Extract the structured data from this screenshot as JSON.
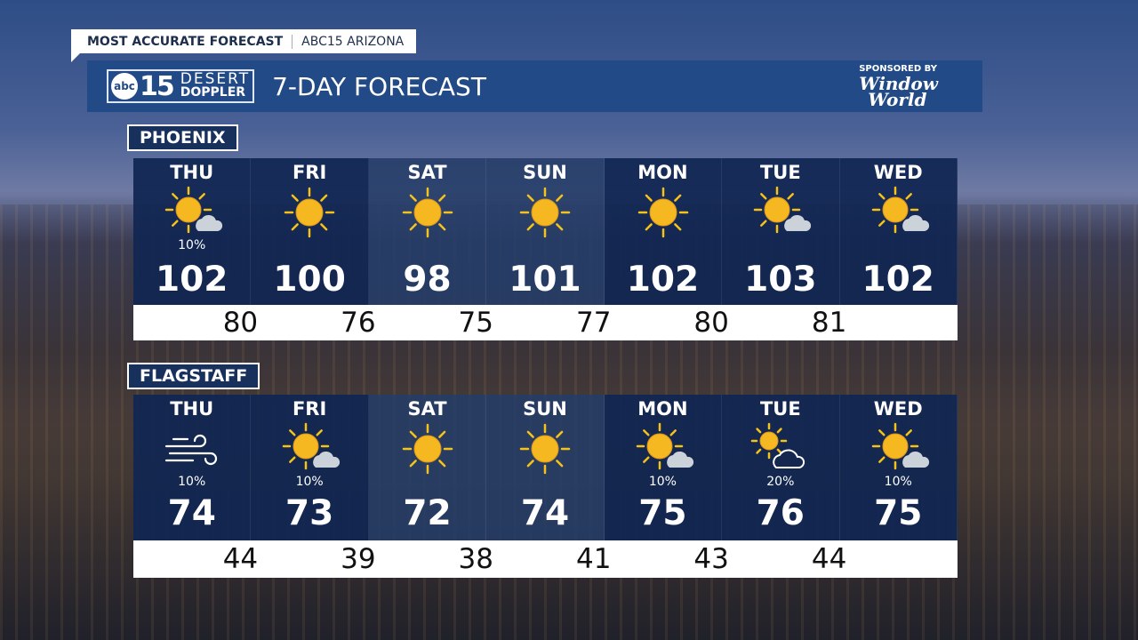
{
  "topbar": {
    "left": "MOST ACCURATE FORECAST",
    "right": "ABC15 ARIZONA"
  },
  "header": {
    "logo_abc": "abc",
    "logo_15": "15",
    "logo_line1": "DESERT",
    "logo_line2": "DOPPLER",
    "title": "7-DAY FORECAST",
    "sponsor_label": "SPONSORED BY",
    "sponsor_name_1": "Window",
    "sponsor_name_2": "World"
  },
  "colors": {
    "panel": "#102652",
    "header": "#224a86",
    "sun": "#f5b820"
  },
  "cities": [
    {
      "name": "PHOENIX",
      "days": [
        {
          "day": "THU",
          "icon": "sun-cloud",
          "precip": "10%",
          "high": "102"
        },
        {
          "day": "FRI",
          "icon": "sun",
          "precip": "",
          "high": "100"
        },
        {
          "day": "SAT",
          "icon": "sun",
          "precip": "",
          "high": "98"
        },
        {
          "day": "SUN",
          "icon": "sun",
          "precip": "",
          "high": "101"
        },
        {
          "day": "MON",
          "icon": "sun",
          "precip": "",
          "high": "102"
        },
        {
          "day": "TUE",
          "icon": "sun-cloud",
          "precip": "",
          "high": "103"
        },
        {
          "day": "WED",
          "icon": "sun-cloud",
          "precip": "",
          "high": "102"
        }
      ],
      "lows": [
        "80",
        "76",
        "75",
        "77",
        "80",
        "81"
      ]
    },
    {
      "name": "FLAGSTAFF",
      "days": [
        {
          "day": "THU",
          "icon": "wind",
          "precip": "10%",
          "high": "74"
        },
        {
          "day": "FRI",
          "icon": "sun-cloud",
          "precip": "10%",
          "high": "73"
        },
        {
          "day": "SAT",
          "icon": "sun",
          "precip": "",
          "high": "72"
        },
        {
          "day": "SUN",
          "icon": "sun",
          "precip": "",
          "high": "74"
        },
        {
          "day": "MON",
          "icon": "sun-cloud",
          "precip": "10%",
          "high": "75"
        },
        {
          "day": "TUE",
          "icon": "partly-cloudy",
          "precip": "20%",
          "high": "76"
        },
        {
          "day": "WED",
          "icon": "sun-cloud",
          "precip": "10%",
          "high": "75"
        }
      ],
      "lows": [
        "44",
        "39",
        "38",
        "41",
        "43",
        "44"
      ]
    }
  ]
}
